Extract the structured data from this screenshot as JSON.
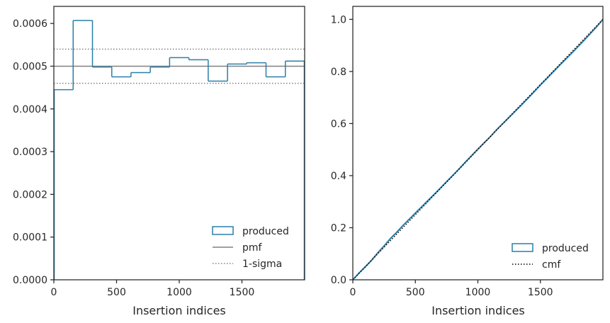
{
  "colors": {
    "hist": "#2a7fa8",
    "pmf": "#808080",
    "sigma": "#808080",
    "cmf": "#000000",
    "axes": "#262626"
  },
  "chart_data": [
    {
      "type": "bar",
      "subtype": "step-histogram",
      "xlabel": "Insertion indices",
      "ylabel": "",
      "xlim": [
        0,
        2000
      ],
      "ylim": [
        0,
        0.00064
      ],
      "xticks": [
        0,
        500,
        1000,
        1500
      ],
      "xtick_labels": [
        "0",
        "500",
        "1000",
        "1500"
      ],
      "yticks": [
        0,
        0.0001,
        0.0002,
        0.0003,
        0.0004,
        0.0005,
        0.0006
      ],
      "ytick_labels": [
        "0.0000",
        "0.0001",
        "0.0002",
        "0.0003",
        "0.0004",
        "0.0005",
        "0.0006"
      ],
      "bin_edges": [
        0,
        154,
        308,
        462,
        615,
        769,
        923,
        1077,
        1231,
        1385,
        1538,
        1692,
        1846,
        2000
      ],
      "values": [
        0.000445,
        0.000607,
        0.000498,
        0.000475,
        0.000485,
        0.000498,
        0.00052,
        0.000515,
        0.000465,
        0.000505,
        0.000508,
        0.000475,
        0.000512
      ],
      "pmf": 0.0005,
      "sigma": [
        0.00046,
        0.00054
      ],
      "legend": [
        "produced",
        "pmf",
        "1-sigma"
      ],
      "legend_position": "lower-right"
    },
    {
      "type": "line",
      "xlabel": "Insertion indices",
      "ylabel": "",
      "xlim": [
        0,
        2000
      ],
      "ylim": [
        0,
        1.05
      ],
      "xticks": [
        0,
        500,
        1000,
        1500
      ],
      "xtick_labels": [
        "0",
        "500",
        "1000",
        "1500"
      ],
      "yticks": [
        0,
        0.2,
        0.4,
        0.6,
        0.8,
        1.0
      ],
      "ytick_labels": [
        "0.0",
        "0.2",
        "0.4",
        "0.6",
        "0.8",
        "1.0"
      ],
      "series": [
        {
          "name": "produced",
          "x": [
            0,
            50,
            100,
            150,
            200,
            250,
            300,
            350,
            400,
            450,
            500,
            550,
            600,
            650,
            700,
            750,
            800,
            850,
            900,
            950,
            1000,
            1050,
            1100,
            1150,
            1200,
            1250,
            1300,
            1350,
            1400,
            1450,
            1500,
            1550,
            1600,
            1650,
            1700,
            1750,
            1800,
            1850,
            1900,
            1950,
            2000
          ],
          "values": [
            0,
            0.026,
            0.05,
            0.075,
            0.104,
            0.13,
            0.158,
            0.182,
            0.208,
            0.232,
            0.256,
            0.28,
            0.304,
            0.328,
            0.352,
            0.377,
            0.401,
            0.426,
            0.452,
            0.477,
            0.502,
            0.526,
            0.55,
            0.576,
            0.6,
            0.624,
            0.648,
            0.672,
            0.697,
            0.722,
            0.748,
            0.772,
            0.797,
            0.822,
            0.846,
            0.87,
            0.895,
            0.92,
            0.946,
            0.972,
            1.0
          ]
        },
        {
          "name": "cmf",
          "x": [
            0,
            2000
          ],
          "values": [
            0,
            1.0
          ]
        }
      ],
      "legend": [
        "produced",
        "cmf"
      ],
      "legend_position": "lower-right"
    }
  ]
}
